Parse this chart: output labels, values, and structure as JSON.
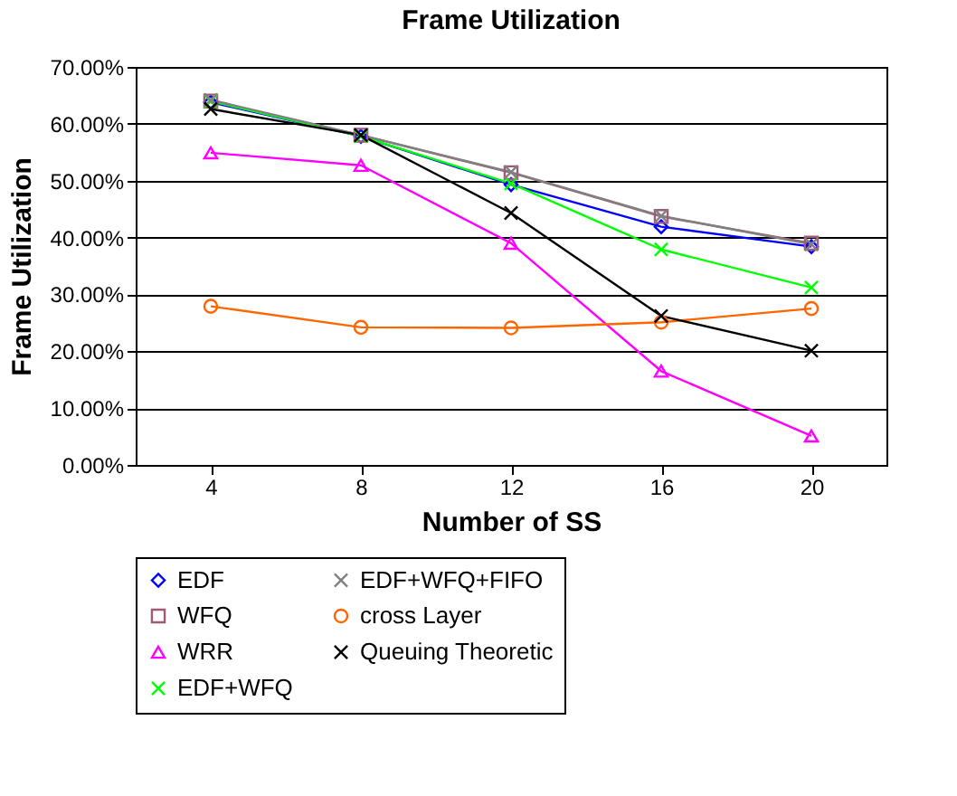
{
  "chart_data": {
    "type": "line",
    "title": "Frame Utilization",
    "xlabel": "Number of SS",
    "ylabel": "Frame Utilization",
    "categories": [
      "4",
      "8",
      "12",
      "16",
      "20"
    ],
    "series": [
      {
        "name": "EDF",
        "color": "#0000ff",
        "marker": "diamond",
        "values": [
          63.8,
          57.8,
          49.3,
          41.9,
          38.4
        ]
      },
      {
        "name": "WFQ",
        "color": "#a05a78",
        "marker": "square",
        "values": [
          64.0,
          58.0,
          51.4,
          43.7,
          39.0
        ]
      },
      {
        "name": "WRR",
        "color": "#ff00ff",
        "marker": "triangle",
        "values": [
          54.9,
          52.7,
          39.0,
          16.5,
          5.1
        ]
      },
      {
        "name": "EDF+WFQ",
        "color": "#00ff00",
        "marker": "cross",
        "values": [
          64.0,
          57.8,
          49.5,
          37.9,
          31.2
        ]
      },
      {
        "name": "EDF+WFQ+FIFO",
        "color": "#808080",
        "marker": "cross",
        "values": [
          64.2,
          58.0,
          51.5,
          43.8,
          38.8
        ]
      },
      {
        "name": "cross Layer",
        "color": "#ff6600",
        "marker": "circle",
        "values": [
          27.9,
          24.2,
          24.1,
          25.1,
          27.5
        ]
      },
      {
        "name": "Queuing Theoretic",
        "color": "#000000",
        "marker": "cross",
        "values": [
          62.6,
          58.0,
          44.3,
          26.2,
          20.1
        ]
      }
    ],
    "ylim": [
      0,
      70
    ],
    "yticks": [
      {
        "value": 0,
        "label": "0.00%"
      },
      {
        "value": 10,
        "label": "10.00%"
      },
      {
        "value": 20,
        "label": "20.00%"
      },
      {
        "value": 30,
        "label": "30.00%"
      },
      {
        "value": 40,
        "label": "40.00%"
      },
      {
        "value": 50,
        "label": "50.00%"
      },
      {
        "value": 60,
        "label": "60.00%"
      },
      {
        "value": 70,
        "label": "70.00%"
      }
    ],
    "grid": "y",
    "legend": "bottom"
  }
}
